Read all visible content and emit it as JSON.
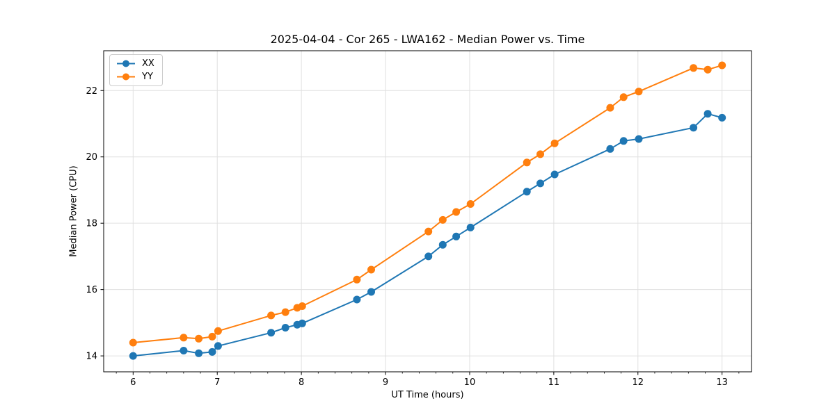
{
  "chart_data": {
    "type": "line",
    "title": "2025-04-04 - Cor 265 - LWA162 - Median Power vs. Time",
    "xlabel": "UT Time (hours)",
    "ylabel": "Median Power (CPU)",
    "xlim": [
      5.65,
      13.35
    ],
    "ylim": [
      13.52,
      23.2
    ],
    "xticks": [
      6,
      7,
      8,
      9,
      10,
      11,
      12,
      13
    ],
    "yticks": [
      14,
      16,
      18,
      20,
      22
    ],
    "x_minor_step": 0.2,
    "grid": true,
    "legend_position": "upper-left",
    "x": [
      6.0,
      6.6,
      6.78,
      6.94,
      7.01,
      7.64,
      7.81,
      7.95,
      8.01,
      8.66,
      8.83,
      9.51,
      9.68,
      9.84,
      10.01,
      10.68,
      10.84,
      11.01,
      11.67,
      11.83,
      12.01,
      12.66,
      12.83,
      13.0
    ],
    "series": [
      {
        "name": "XX",
        "color": "#1f77b4",
        "values": [
          14.0,
          14.16,
          14.08,
          14.12,
          14.3,
          14.7,
          14.85,
          14.94,
          14.98,
          15.7,
          15.93,
          17.0,
          17.35,
          17.6,
          17.87,
          18.95,
          19.2,
          19.47,
          20.24,
          20.48,
          20.54,
          20.88,
          21.3,
          21.18
        ]
      },
      {
        "name": "YY",
        "color": "#ff7f0e",
        "values": [
          14.4,
          14.55,
          14.52,
          14.58,
          14.75,
          15.22,
          15.32,
          15.45,
          15.5,
          16.3,
          16.6,
          17.75,
          18.1,
          18.34,
          18.58,
          19.83,
          20.08,
          20.41,
          21.48,
          21.8,
          21.97,
          22.68,
          22.63,
          22.76
        ]
      }
    ]
  },
  "colors": {
    "grid": "#e0e0e0",
    "spine": "#000000",
    "tick": "#000000",
    "background": "#ffffff"
  }
}
